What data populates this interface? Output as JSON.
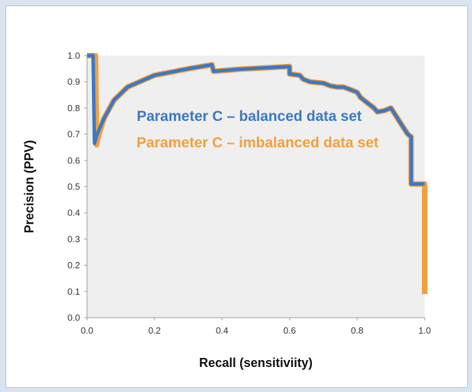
{
  "chart_data": {
    "type": "line",
    "title": "",
    "xlabel": "Recall (sensitiviity)",
    "ylabel": "Precision (PPV)",
    "xlim": [
      0,
      1
    ],
    "ylim": [
      0,
      1
    ],
    "x_ticks": [
      "0.0",
      "0.2",
      "0.4",
      "0.6",
      "0.8",
      "1.0"
    ],
    "y_ticks": [
      "0.0",
      "0.1",
      "0.2",
      "0.3",
      "0.4",
      "0.5",
      "0.6",
      "0.7",
      "0.8",
      "0.9",
      "1.0"
    ],
    "grid": false,
    "plot_background": "#efefef",
    "legend_placement": "inside-top-center",
    "series": [
      {
        "name": "Parameter C – imbalanced data set",
        "color": "#f0a040",
        "points": [
          [
            0,
            1.0
          ],
          [
            0.025,
            1.0
          ],
          [
            0.028,
            0.66
          ],
          [
            0.035,
            0.7
          ],
          [
            0.05,
            0.76
          ],
          [
            0.08,
            0.83
          ],
          [
            0.12,
            0.88
          ],
          [
            0.2,
            0.925
          ],
          [
            0.3,
            0.95
          ],
          [
            0.37,
            0.965
          ],
          [
            0.375,
            0.94
          ],
          [
            0.45,
            0.948
          ],
          [
            0.55,
            0.955
          ],
          [
            0.6,
            0.958
          ],
          [
            0.6,
            0.93
          ],
          [
            0.63,
            0.925
          ],
          [
            0.64,
            0.91
          ],
          [
            0.66,
            0.9
          ],
          [
            0.7,
            0.895
          ],
          [
            0.72,
            0.885
          ],
          [
            0.74,
            0.88
          ],
          [
            0.76,
            0.88
          ],
          [
            0.78,
            0.87
          ],
          [
            0.8,
            0.86
          ],
          [
            0.81,
            0.84
          ],
          [
            0.83,
            0.82
          ],
          [
            0.85,
            0.8
          ],
          [
            0.86,
            0.785
          ],
          [
            0.88,
            0.79
          ],
          [
            0.9,
            0.8
          ],
          [
            0.91,
            0.78
          ],
          [
            0.92,
            0.76
          ],
          [
            0.93,
            0.74
          ],
          [
            0.94,
            0.72
          ],
          [
            0.95,
            0.7
          ],
          [
            0.96,
            0.69
          ],
          [
            0.96,
            0.51
          ],
          [
            1.0,
            0.51
          ],
          [
            1.0,
            0.09
          ]
        ]
      },
      {
        "name": "Parameter C – balanced data set",
        "color": "#3d78c2",
        "points": [
          [
            0,
            1.0
          ],
          [
            0.018,
            1.0
          ],
          [
            0.022,
            0.665
          ],
          [
            0.03,
            0.7
          ],
          [
            0.05,
            0.76
          ],
          [
            0.08,
            0.83
          ],
          [
            0.12,
            0.88
          ],
          [
            0.2,
            0.925
          ],
          [
            0.3,
            0.95
          ],
          [
            0.37,
            0.965
          ],
          [
            0.375,
            0.94
          ],
          [
            0.45,
            0.948
          ],
          [
            0.55,
            0.955
          ],
          [
            0.6,
            0.958
          ],
          [
            0.6,
            0.93
          ],
          [
            0.63,
            0.925
          ],
          [
            0.64,
            0.91
          ],
          [
            0.66,
            0.9
          ],
          [
            0.7,
            0.895
          ],
          [
            0.72,
            0.885
          ],
          [
            0.74,
            0.88
          ],
          [
            0.76,
            0.88
          ],
          [
            0.78,
            0.87
          ],
          [
            0.8,
            0.86
          ],
          [
            0.81,
            0.84
          ],
          [
            0.83,
            0.82
          ],
          [
            0.85,
            0.8
          ],
          [
            0.86,
            0.785
          ],
          [
            0.88,
            0.79
          ],
          [
            0.9,
            0.8
          ],
          [
            0.91,
            0.78
          ],
          [
            0.92,
            0.76
          ],
          [
            0.93,
            0.74
          ],
          [
            0.94,
            0.72
          ],
          [
            0.95,
            0.7
          ],
          [
            0.96,
            0.69
          ],
          [
            0.96,
            0.51
          ],
          [
            1.0,
            0.51
          ]
        ]
      }
    ]
  }
}
